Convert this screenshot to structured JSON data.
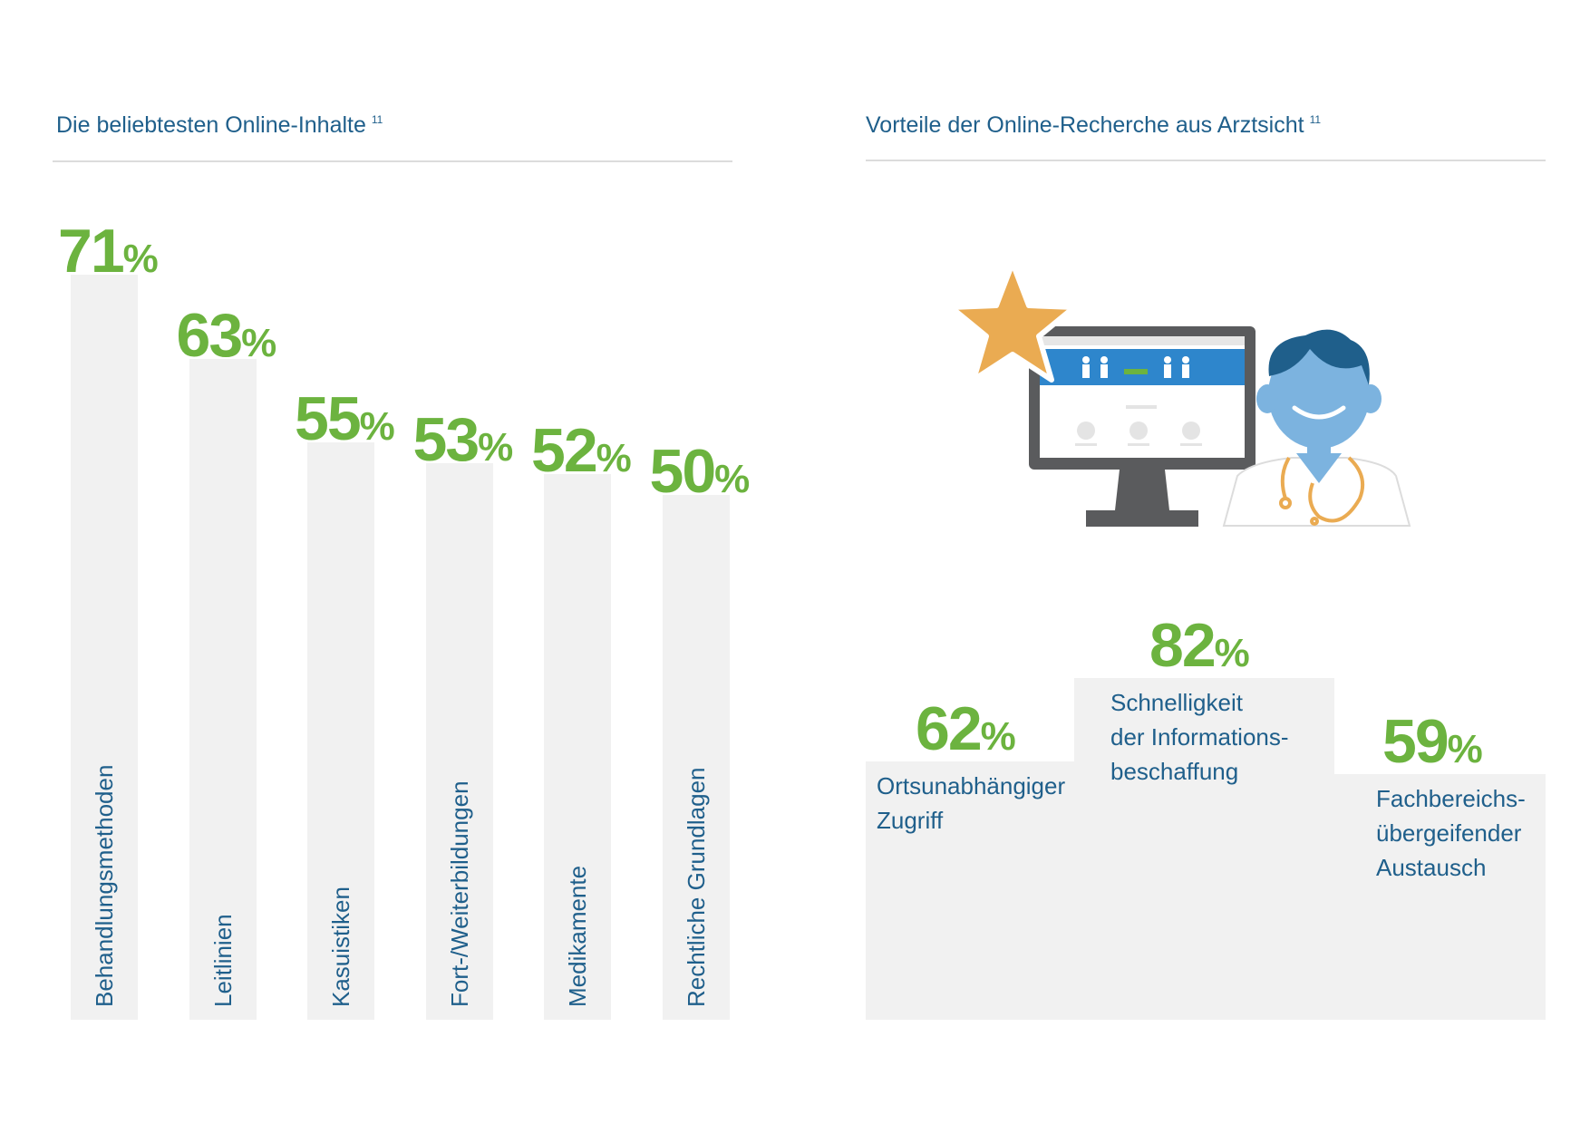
{
  "colors": {
    "accent": "#6cb33f",
    "text": "#1f5f8b",
    "bar": "#f1f1f1",
    "rule": "#dcdcdc"
  },
  "left": {
    "title": "Die beliebtesten Online-Inhalte",
    "footnote": "11"
  },
  "right": {
    "title": "Vorteile der Online-Recherche aus Arztsicht",
    "footnote": "11"
  },
  "percent_sign": "%",
  "chart_data": [
    {
      "type": "bar",
      "title": "Die beliebtesten Online-Inhalte",
      "categories": [
        "Behandlungsmethoden",
        "Leitlinien",
        "Kasuistiken",
        "Fort-/Weiterbildungen",
        "Medikamente",
        "Rechtliche Grundlagen"
      ],
      "values": [
        71,
        63,
        55,
        53,
        52,
        50
      ],
      "value_labels": [
        "71",
        "63",
        "55",
        "53",
        "52",
        "50"
      ],
      "unit": "%",
      "ylim": [
        0,
        71
      ],
      "grid": false,
      "legend": "none"
    },
    {
      "type": "bar",
      "title": "Vorteile der Online-Recherche aus Arztsicht",
      "categories": [
        "Ortsunabhängiger Zugriff",
        "Schnelligkeit der Informations-beschaffung",
        "Fachbereichs-übergeifender Austausch"
      ],
      "label_lines": [
        [
          "Ortsunabhängiger",
          "Zugriff"
        ],
        [
          "Schnelligkeit",
          "der Informations-",
          "beschaffung"
        ],
        [
          "Fachbereichs-",
          "übergeifender",
          "Austausch"
        ]
      ],
      "values": [
        62,
        82,
        59
      ],
      "value_labels": [
        "62",
        "82",
        "59"
      ],
      "unit": "%",
      "grid": false,
      "legend": "none"
    }
  ],
  "illustration": {
    "icons": [
      "star-icon",
      "computer-monitor-icon",
      "doctor-icon",
      "stethoscope-icon"
    ],
    "star_color": "#eaab52",
    "monitor_color": "#5a5b5d",
    "screen_banner_color": "#2e86cc",
    "doctor_skin_color": "#7cb3df",
    "doctor_hair_color": "#1f5f8b",
    "stethoscope_color": "#eaab52"
  }
}
